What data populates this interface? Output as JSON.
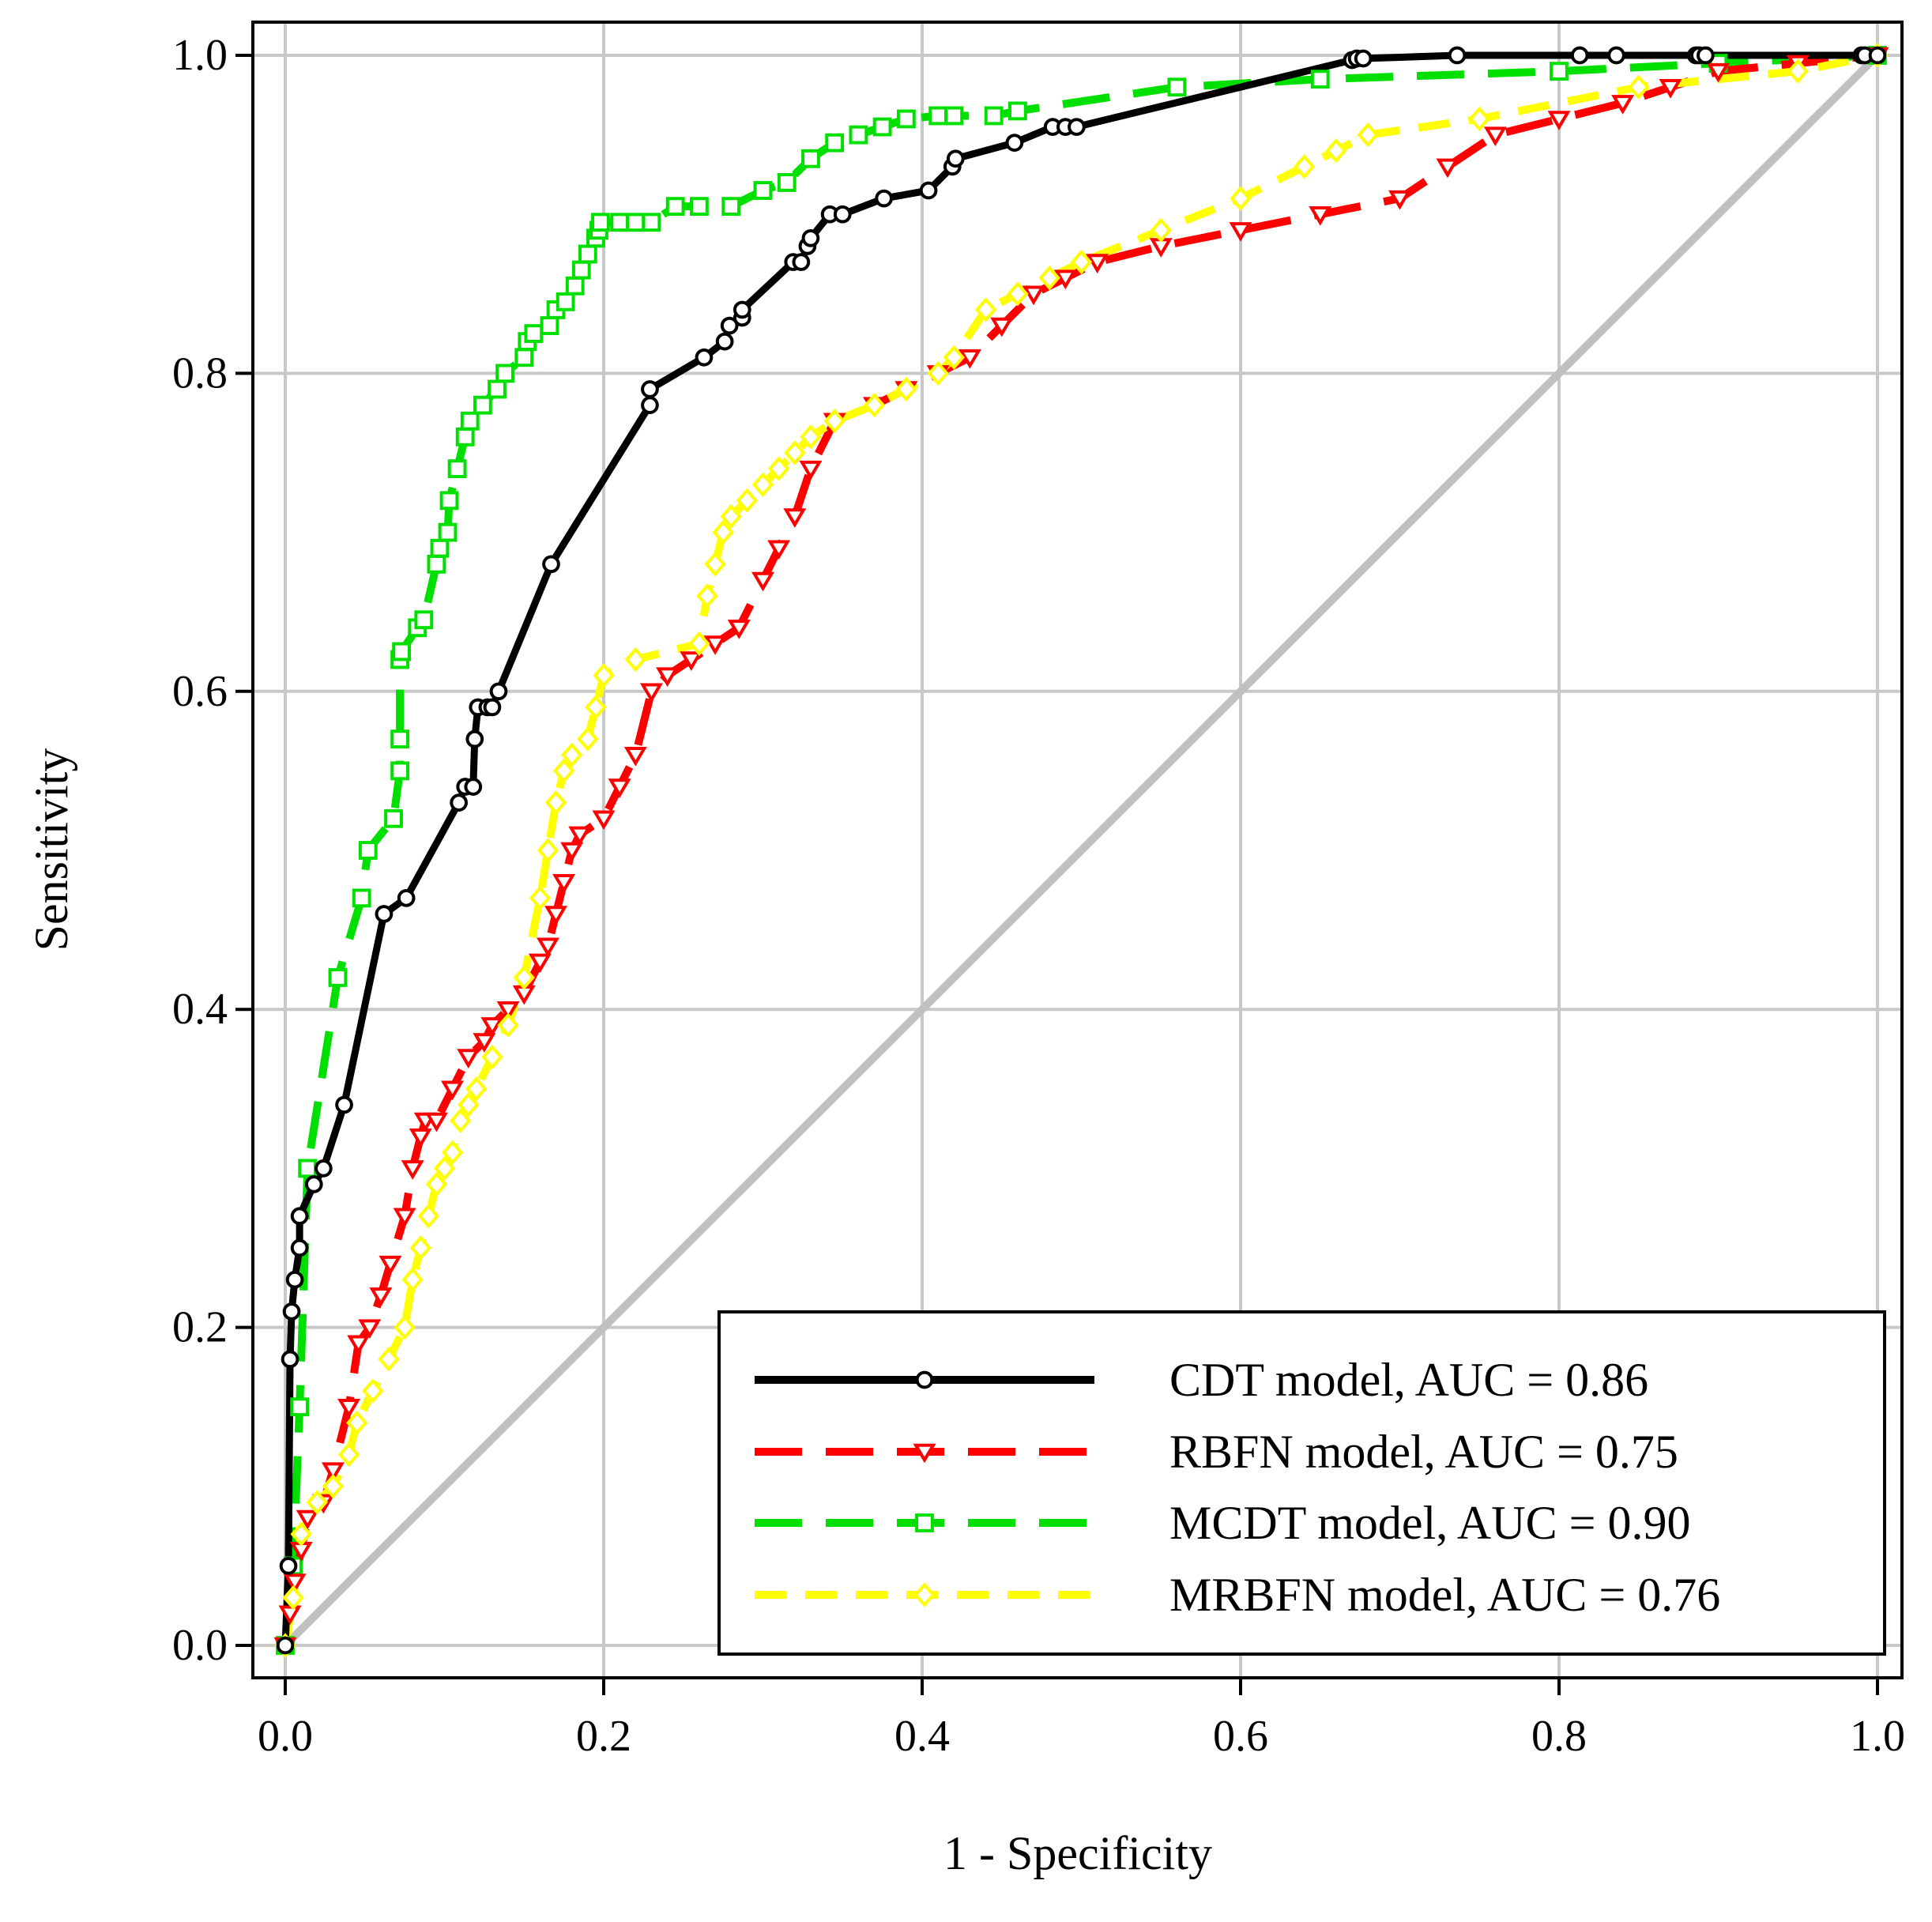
{
  "chart_data": {
    "type": "line",
    "title": "",
    "xlabel": "1 - Specificity",
    "ylabel": "Sensitivity",
    "xlim": [
      0,
      1
    ],
    "ylim": [
      0,
      1
    ],
    "xticks": [
      "0.0",
      "0.2",
      "0.4",
      "0.6",
      "0.8",
      "1.0"
    ],
    "yticks": [
      "0.0",
      "0.2",
      "0.4",
      "0.6",
      "0.8",
      "1.0"
    ],
    "grid": true,
    "legend_position": "bottom-right",
    "reference_line": {
      "name": "chance diagonal",
      "color": "#c0c0c0",
      "x": [
        0,
        1
      ],
      "y": [
        0,
        1
      ]
    },
    "series": [
      {
        "name": "CDT model, AUC = 0.86",
        "color": "#000000",
        "dash": "solid",
        "marker": "circle",
        "x": [
          0,
          0.002,
          0.003,
          0.004,
          0.006,
          0.009,
          0.009,
          0.018,
          0.024,
          0.037,
          0.062,
          0.076,
          0.109,
          0.113,
          0.118,
          0.119,
          0.121,
          0.127,
          0.13,
          0.134,
          0.167,
          0.229,
          0.229,
          0.263,
          0.276,
          0.279,
          0.287,
          0.287,
          0.319,
          0.324,
          0.328,
          0.33,
          0.342,
          0.35,
          0.376,
          0.404,
          0.419,
          0.421,
          0.458,
          0.482,
          0.49,
          0.497,
          0.67,
          0.673,
          0.677,
          0.736,
          0.813,
          0.836,
          0.886,
          0.888,
          0.892,
          0.99,
          0.992,
          1.0
        ],
        "y": [
          0,
          0.05,
          0.18,
          0.21,
          0.23,
          0.25,
          0.27,
          0.29,
          0.3,
          0.34,
          0.46,
          0.47,
          0.53,
          0.54,
          0.54,
          0.57,
          0.59,
          0.59,
          0.59,
          0.6,
          0.68,
          0.78,
          0.79,
          0.81,
          0.82,
          0.83,
          0.835,
          0.84,
          0.87,
          0.87,
          0.88,
          0.885,
          0.9,
          0.9,
          0.91,
          0.915,
          0.93,
          0.935,
          0.945,
          0.955,
          0.955,
          0.955,
          0.997,
          0.998,
          0.998,
          1.0,
          1.0,
          1.0,
          1.0,
          1.0,
          1.0,
          1.0,
          1.0,
          1.0
        ]
      },
      {
        "name": "RBFN model, AUC = 0.75",
        "color": "#ff0000",
        "dash": "longdash",
        "marker": "triangle-down",
        "x": [
          0,
          0.003,
          0.006,
          0.01,
          0.014,
          0.024,
          0.03,
          0.04,
          0.046,
          0.053,
          0.06,
          0.066,
          0.075,
          0.08,
          0.085,
          0.088,
          0.095,
          0.105,
          0.115,
          0.125,
          0.13,
          0.14,
          0.15,
          0.16,
          0.165,
          0.17,
          0.175,
          0.18,
          0.185,
          0.2,
          0.21,
          0.22,
          0.23,
          0.24,
          0.255,
          0.27,
          0.285,
          0.3,
          0.31,
          0.32,
          0.33,
          0.345,
          0.37,
          0.39,
          0.41,
          0.43,
          0.45,
          0.47,
          0.49,
          0.51,
          0.55,
          0.6,
          0.65,
          0.7,
          0.73,
          0.76,
          0.8,
          0.84,
          0.87,
          0.9,
          0.95,
          1.0
        ],
        "y": [
          0,
          0.02,
          0.04,
          0.06,
          0.08,
          0.09,
          0.11,
          0.15,
          0.19,
          0.2,
          0.22,
          0.24,
          0.27,
          0.3,
          0.32,
          0.33,
          0.33,
          0.35,
          0.37,
          0.38,
          0.39,
          0.4,
          0.41,
          0.43,
          0.44,
          0.46,
          0.48,
          0.5,
          0.51,
          0.52,
          0.54,
          0.56,
          0.6,
          0.61,
          0.62,
          0.63,
          0.64,
          0.67,
          0.69,
          0.71,
          0.74,
          0.77,
          0.78,
          0.79,
          0.8,
          0.81,
          0.83,
          0.85,
          0.86,
          0.87,
          0.88,
          0.89,
          0.9,
          0.91,
          0.93,
          0.95,
          0.96,
          0.97,
          0.98,
          0.99,
          0.995,
          1.0
        ]
      },
      {
        "name": "MCDT model, AUC = 0.90",
        "color": "#00e000",
        "dash": "longdash",
        "marker": "square",
        "x": [
          0,
          0.005,
          0.009,
          0.014,
          0.033,
          0.048,
          0.052,
          0.068,
          0.072,
          0.072,
          0.072,
          0.073,
          0.083,
          0.087,
          0.095,
          0.097,
          0.102,
          0.103,
          0.108,
          0.113,
          0.116,
          0.124,
          0.133,
          0.138,
          0.15,
          0.152,
          0.156,
          0.166,
          0.17,
          0.176,
          0.182,
          0.186,
          0.19,
          0.195,
          0.197,
          0.198,
          0.21,
          0.22,
          0.23,
          0.245,
          0.26,
          0.28,
          0.3,
          0.315,
          0.33,
          0.345,
          0.36,
          0.375,
          0.39,
          0.41,
          0.42,
          0.445,
          0.46,
          0.56,
          0.65,
          0.8,
          0.9,
          1.0
        ],
        "y": [
          0,
          0.05,
          0.15,
          0.3,
          0.42,
          0.47,
          0.5,
          0.52,
          0.55,
          0.57,
          0.62,
          0.625,
          0.64,
          0.645,
          0.68,
          0.69,
          0.7,
          0.72,
          0.74,
          0.76,
          0.77,
          0.78,
          0.79,
          0.8,
          0.81,
          0.82,
          0.825,
          0.83,
          0.84,
          0.845,
          0.855,
          0.865,
          0.875,
          0.885,
          0.89,
          0.895,
          0.895,
          0.895,
          0.895,
          0.905,
          0.905,
          0.905,
          0.915,
          0.92,
          0.935,
          0.945,
          0.95,
          0.955,
          0.96,
          0.962,
          0.962,
          0.962,
          0.965,
          0.98,
          0.985,
          0.99,
          0.995,
          1.0
        ]
      },
      {
        "name": "MRBFN model, AUC = 0.76",
        "color": "#ffff00",
        "dash": "dash",
        "marker": "diamond",
        "x": [
          0,
          0.005,
          0.01,
          0.02,
          0.03,
          0.04,
          0.045,
          0.055,
          0.065,
          0.075,
          0.08,
          0.085,
          0.09,
          0.095,
          0.1,
          0.105,
          0.11,
          0.115,
          0.12,
          0.13,
          0.14,
          0.15,
          0.16,
          0.165,
          0.17,
          0.175,
          0.18,
          0.19,
          0.195,
          0.2,
          0.22,
          0.26,
          0.265,
          0.27,
          0.275,
          0.28,
          0.29,
          0.3,
          0.31,
          0.32,
          0.33,
          0.345,
          0.37,
          0.39,
          0.41,
          0.42,
          0.44,
          0.46,
          0.48,
          0.5,
          0.55,
          0.6,
          0.64,
          0.66,
          0.68,
          0.75,
          0.85,
          0.95,
          1.0
        ],
        "y": [
          0,
          0.03,
          0.07,
          0.09,
          0.1,
          0.12,
          0.14,
          0.16,
          0.18,
          0.2,
          0.23,
          0.25,
          0.27,
          0.29,
          0.3,
          0.31,
          0.33,
          0.34,
          0.35,
          0.37,
          0.39,
          0.42,
          0.47,
          0.5,
          0.53,
          0.55,
          0.56,
          0.57,
          0.59,
          0.61,
          0.62,
          0.63,
          0.66,
          0.68,
          0.7,
          0.71,
          0.72,
          0.73,
          0.74,
          0.75,
          0.76,
          0.77,
          0.78,
          0.79,
          0.8,
          0.81,
          0.84,
          0.85,
          0.86,
          0.87,
          0.89,
          0.91,
          0.93,
          0.94,
          0.95,
          0.96,
          0.98,
          0.99,
          1.0
        ]
      }
    ]
  }
}
